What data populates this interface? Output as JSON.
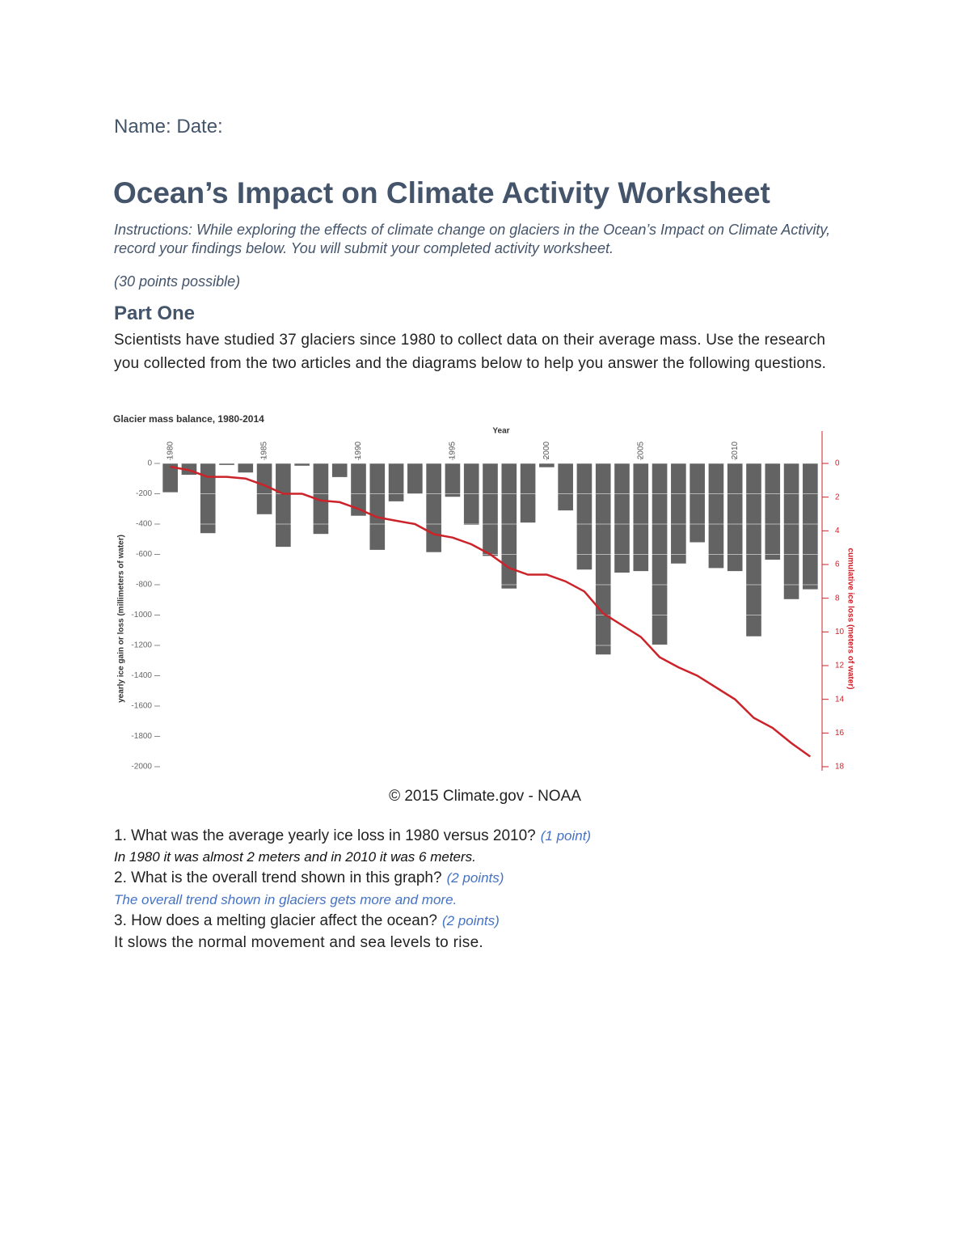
{
  "header": {
    "name_date": "Name: Date:",
    "title": "Ocean’s Impact on Climate Activity Worksheet",
    "instructions": "Instructions: While exploring the effects of climate change on glaciers in the Ocean’s Impact on Climate Activity, record your findings below. You will submit your completed activity worksheet.",
    "points": "(30 points possible)"
  },
  "part_one": {
    "heading": "Part One",
    "text": "Scientists have studied 37 glaciers since 1980 to collect data on their average mass. Use the research you collected from the two articles and the diagrams below to help you answer the following questions."
  },
  "chart_data": {
    "type": "bar",
    "title": "Glacier mass balance, 1980-2014",
    "x_label": "Year",
    "y_label": "yearly ice gain or loss (millimeters of water)",
    "y2_label": "cumulative ice loss (meters of water)",
    "x": [
      1980,
      1981,
      1982,
      1983,
      1984,
      1985,
      1986,
      1987,
      1988,
      1989,
      1990,
      1991,
      1992,
      1993,
      1994,
      1995,
      1996,
      1997,
      1998,
      1999,
      2000,
      2001,
      2002,
      2003,
      2004,
      2005,
      2006,
      2007,
      2008,
      2009,
      2010,
      2011,
      2012,
      2013,
      2014
    ],
    "xlim": [
      1979.5,
      2014.5
    ],
    "xticks": [
      1980,
      1985,
      1990,
      1995,
      2000,
      2005,
      2010
    ],
    "series": [
      {
        "color": "#636363",
        "values": [
          -190,
          -75,
          -460,
          -10,
          -60,
          -335,
          -550,
          -15,
          -465,
          -90,
          -345,
          -570,
          -250,
          -200,
          -585,
          -220,
          -405,
          -610,
          -825,
          -390,
          -25,
          -310,
          -700,
          -1260,
          -720,
          -710,
          -1195,
          -660,
          -520,
          -690,
          -710,
          -1140,
          -635,
          -895,
          -830
        ]
      },
      {
        "type": "line",
        "axis": "y2",
        "color": "#cc2229",
        "values": [
          0.2,
          0.4,
          0.8,
          0.8,
          0.9,
          1.3,
          1.8,
          1.8,
          2.2,
          2.3,
          2.7,
          3.2,
          3.4,
          3.6,
          4.2,
          4.4,
          4.8,
          5.4,
          6.2,
          6.6,
          6.6,
          7.0,
          7.6,
          8.9,
          9.6,
          10.3,
          11.5,
          12.1,
          12.6,
          13.3,
          14.0,
          15.1,
          15.7,
          16.6,
          17.4
        ]
      }
    ],
    "ylim": [
      -2000,
      0
    ],
    "yticks": [
      0,
      -200,
      -400,
      -600,
      -800,
      -1000,
      -1200,
      -1400,
      -1600,
      -1800,
      -2000
    ],
    "y2lim": [
      18,
      0
    ],
    "y2ticks": [
      0,
      2,
      4,
      6,
      8,
      10,
      12,
      14,
      16,
      18
    ],
    "grid": true
  },
  "caption": "© 2015 Climate.gov - NOAA",
  "questions": [
    {
      "question": "1. What was the average yearly ice loss in 1980 versus 2010?",
      "points": "(1 point)",
      "answer": "In 1980 it was almost 2 meters and in 2010 it was 6 meters."
    },
    {
      "question": "2. What is the overall trend shown in this graph?",
      "points": "(2 points)",
      "answer": "The overall trend shown in glaciers gets more and more."
    },
    {
      "question": "3. How does a melting glacier affect the ocean?",
      "points": "(2 points)",
      "answer": "It slows the normal movement and sea levels to rise."
    }
  ]
}
